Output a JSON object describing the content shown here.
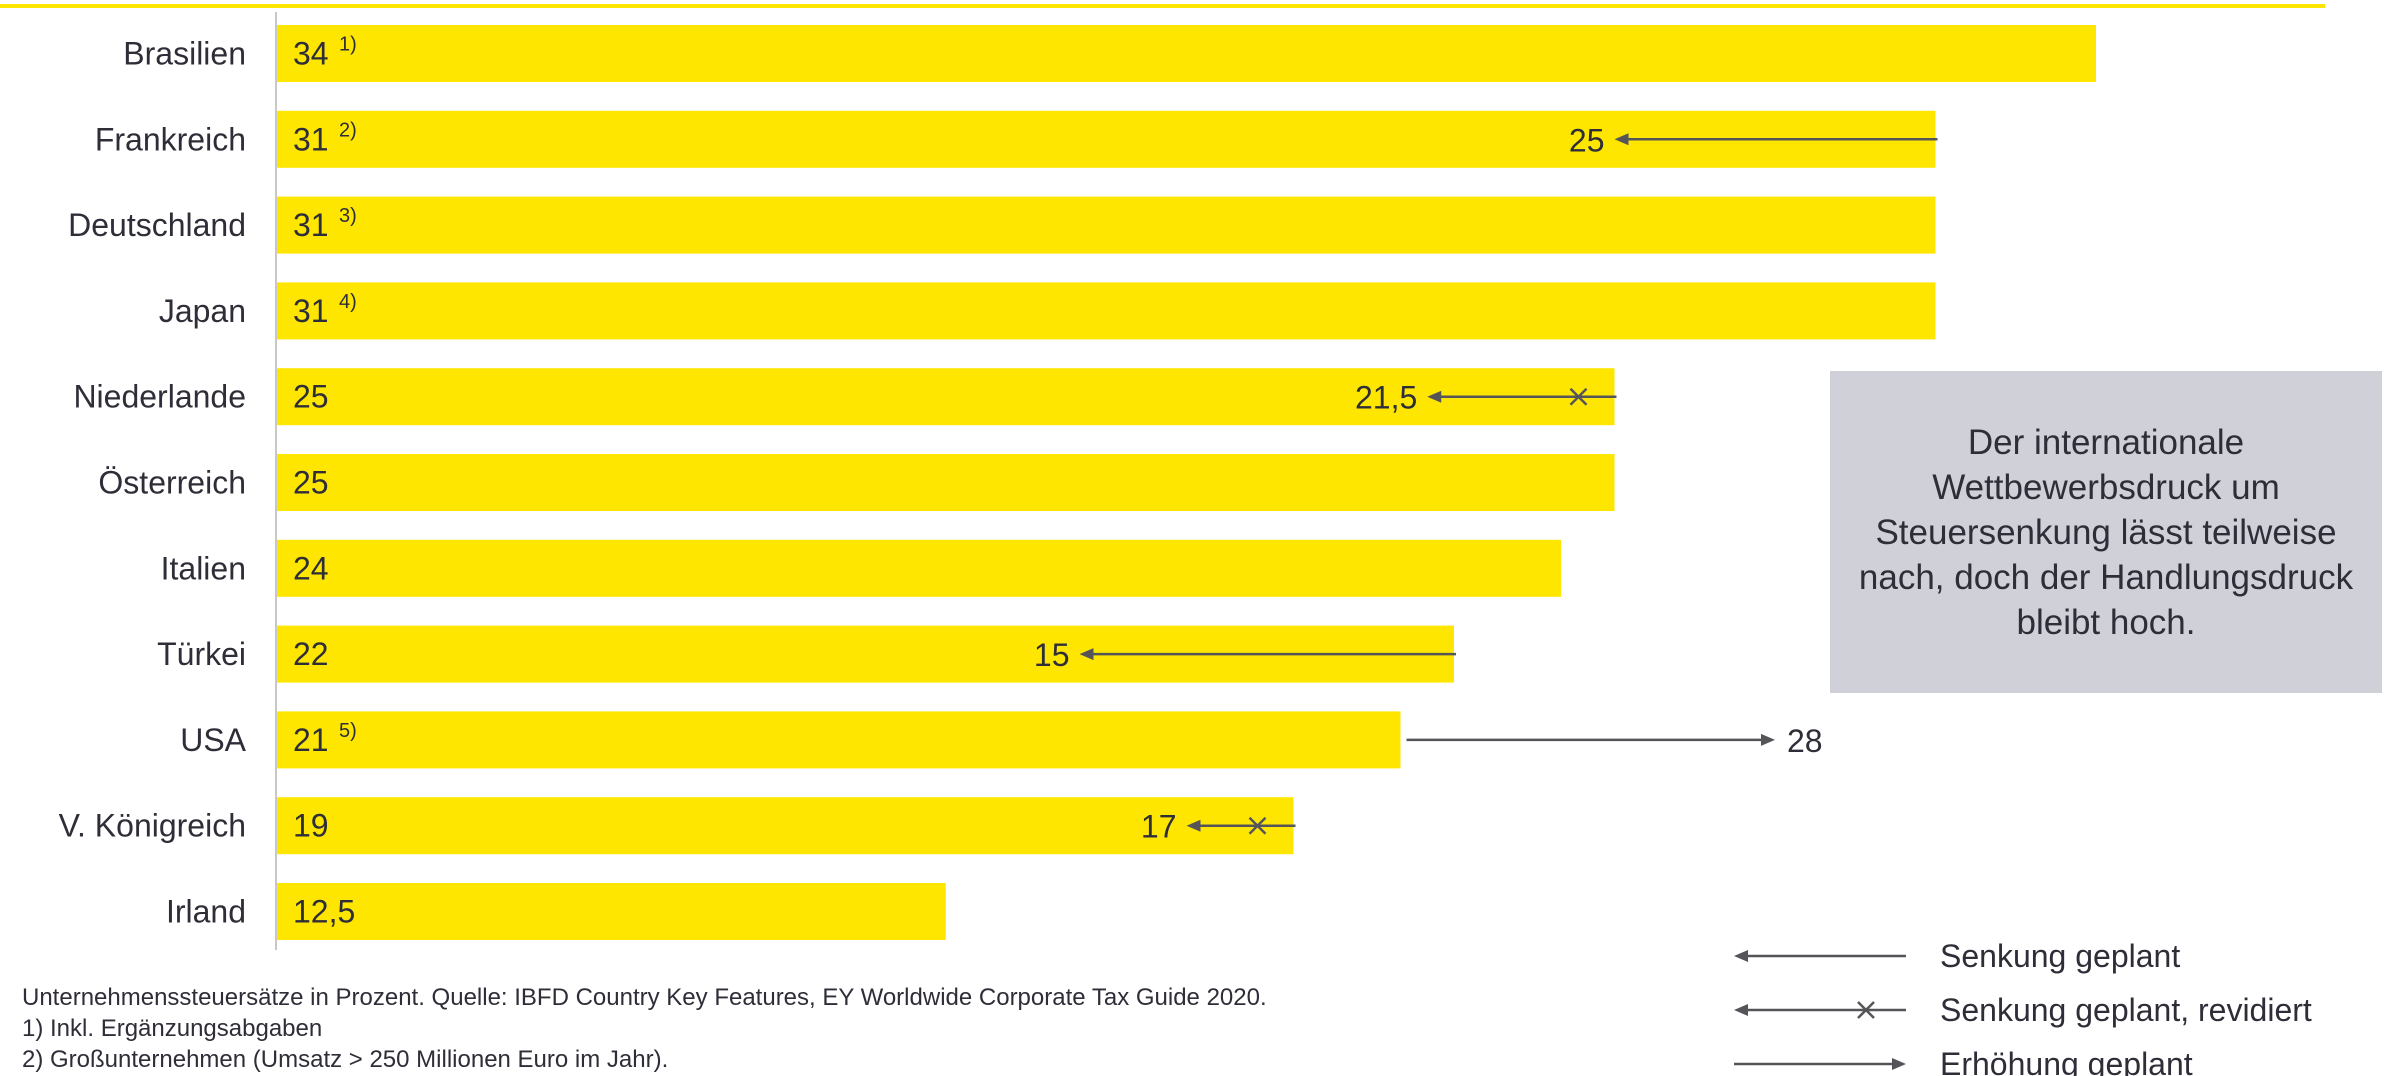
{
  "chart_data": {
    "type": "bar",
    "orientation": "horizontal",
    "categories": [
      "Brasilien",
      "Frankreich",
      "Deutschland",
      "Japan",
      "Niederlande",
      "Österreich",
      "Italien",
      "Türkei",
      "USA",
      "V. Königreich",
      "Irland"
    ],
    "values": [
      34,
      31,
      31,
      31,
      25,
      25,
      24,
      22,
      21,
      19,
      12.5
    ],
    "value_labels": [
      "34",
      "31",
      "31",
      "31",
      "25",
      "25",
      "24",
      "22",
      "21",
      "19",
      "12,5"
    ],
    "footnote_marks": [
      "1)",
      "2)",
      "3)",
      "4)",
      "",
      "",
      "",
      "",
      "5)",
      "",
      ""
    ],
    "planned_changes": [
      {
        "category": "Frankreich",
        "from": 31,
        "to": 25,
        "label": "25",
        "kind": "decrease"
      },
      {
        "category": "Niederlande",
        "from": 25,
        "to": 21.5,
        "label": "21,5",
        "kind": "decrease_revised"
      },
      {
        "category": "Türkei",
        "from": 22,
        "to": 15,
        "label": "15",
        "kind": "decrease"
      },
      {
        "category": "USA",
        "from": 21,
        "to": 28,
        "label": "28",
        "kind": "increase"
      },
      {
        "category": "V. Königreich",
        "from": 19,
        "to": 17,
        "label": "17",
        "kind": "decrease_revised"
      }
    ],
    "xlim": [
      0,
      34
    ],
    "grid": false,
    "bar_color": "#ffe600",
    "arrow_color": "#555559"
  },
  "callout": {
    "text": "Der internationale Wettbewerbsdruck um Steuersenkung lässt teilweise nach, doch der Handlungsdruck bleibt hoch.",
    "background": "#cfd0d8"
  },
  "legend": {
    "items": [
      {
        "kind": "decrease",
        "label": "Senkung geplant"
      },
      {
        "kind": "decrease_revised",
        "label": "Senkung geplant, revidiert"
      },
      {
        "kind": "increase",
        "label": "Erhöhung geplant"
      }
    ]
  },
  "notes": {
    "source": "Unternehmenssteuersätze in Prozent. Quelle: IBFD Country Key Features, EY Worldwide Corporate Tax Guide 2020.",
    "fn1": "1) Inkl. Ergänzungsabgaben",
    "fn2": "2) Großunternehmen (Umsatz > 250 Millionen Euro im Jahr)."
  }
}
